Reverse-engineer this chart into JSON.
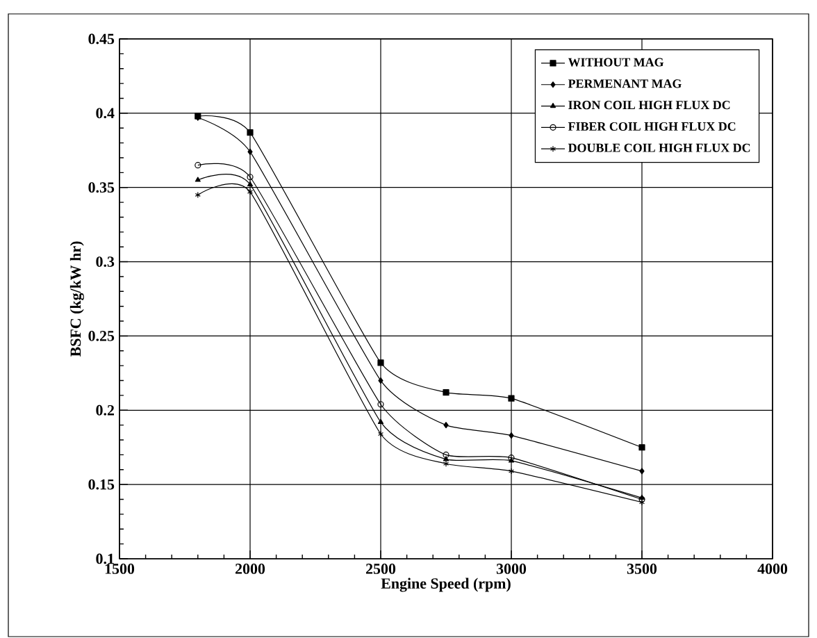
{
  "chart_data": {
    "type": "line",
    "xlabel": "Engine Speed (rpm)",
    "ylabel": "BSFC  (kg/kW hr)",
    "x": [
      1800,
      2000,
      2500,
      2750,
      3000,
      3500
    ],
    "series": [
      {
        "name": "WITHOUT MAG",
        "color": "#000000",
        "marker": "square",
        "values": [
          0.398,
          0.387,
          0.232,
          0.212,
          0.208,
          0.175
        ]
      },
      {
        "name": "PERMENANT MAG",
        "color": "#000000",
        "marker": "diamond",
        "values": [
          0.397,
          0.374,
          0.22,
          0.19,
          0.183,
          0.159
        ]
      },
      {
        "name": "IRON COIL HIGH FLUX DC",
        "color": "#000000",
        "marker": "triangle",
        "values": [
          0.355,
          0.352,
          0.192,
          0.167,
          0.166,
          0.141
        ]
      },
      {
        "name": "FIBER COIL HIGH FLUX DC",
        "color": "#000000",
        "marker": "circle",
        "values": [
          0.365,
          0.357,
          0.204,
          0.17,
          0.168,
          0.14
        ]
      },
      {
        "name": "DOUBLE COIL HIGH FLUX DC",
        "color": "#000000",
        "marker": "cross",
        "values": [
          0.345,
          0.347,
          0.184,
          0.164,
          0.159,
          0.138
        ]
      }
    ],
    "xlim": [
      1500,
      4000
    ],
    "xticks": [
      1500,
      2000,
      2500,
      3000,
      3500,
      4000
    ],
    "ylim": [
      0.1,
      0.45
    ],
    "yticks": [
      0.1,
      0.15,
      0.2,
      0.25,
      0.3,
      0.35,
      0.4,
      0.45
    ],
    "grid": true,
    "legend": "top right",
    "line_style": "solid"
  }
}
